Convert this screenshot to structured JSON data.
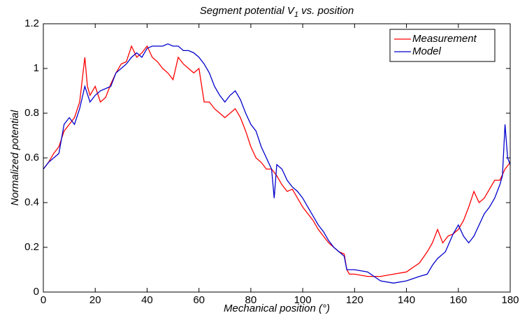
{
  "chart_data": {
    "type": "line",
    "title": {
      "text": "Segment potential V",
      "subscript": "1",
      "suffix": " vs. position"
    },
    "x_label": "Mechanical position (°)",
    "y_label": "Normalized potential",
    "xlim": [
      0,
      180
    ],
    "xticks": [
      0,
      20,
      40,
      60,
      80,
      100,
      120,
      140,
      160,
      180
    ],
    "ylim": [
      0,
      1.2
    ],
    "yticks": [
      0,
      0.2,
      0.4,
      0.6,
      0.8,
      1,
      1.2
    ],
    "grid": false,
    "legend": "top-right",
    "series": [
      {
        "name": "Measurement",
        "color": "#ff0000",
        "x": [
          0,
          2,
          4,
          6,
          8,
          10,
          12,
          14,
          16,
          17,
          18,
          20,
          22,
          24,
          26,
          28,
          30,
          32,
          34,
          36,
          38,
          40,
          42,
          44,
          46,
          48,
          50,
          52,
          54,
          56,
          58,
          60,
          62,
          64,
          66,
          68,
          70,
          72,
          74,
          76,
          78,
          80,
          82,
          84,
          86,
          88,
          90,
          92,
          94,
          96,
          98,
          100,
          102,
          104,
          106,
          108,
          110,
          112,
          114,
          116,
          117,
          118,
          120,
          125,
          130,
          135,
          140,
          145,
          148,
          150,
          152,
          154,
          156,
          158,
          160,
          162,
          164,
          166,
          168,
          170,
          172,
          174,
          176,
          178,
          180
        ],
        "values": [
          0.55,
          0.58,
          0.62,
          0.65,
          0.72,
          0.75,
          0.78,
          0.85,
          1.05,
          0.92,
          0.88,
          0.92,
          0.85,
          0.87,
          0.93,
          0.98,
          1.02,
          1.03,
          1.1,
          1.05,
          1.07,
          1.1,
          1.05,
          1.03,
          1.0,
          0.98,
          0.95,
          1.05,
          1.02,
          1.0,
          0.98,
          1.0,
          0.85,
          0.85,
          0.82,
          0.8,
          0.78,
          0.8,
          0.82,
          0.78,
          0.72,
          0.65,
          0.6,
          0.58,
          0.55,
          0.55,
          0.52,
          0.48,
          0.45,
          0.46,
          0.42,
          0.38,
          0.35,
          0.32,
          0.28,
          0.25,
          0.22,
          0.2,
          0.18,
          0.17,
          0.1,
          0.08,
          0.08,
          0.07,
          0.07,
          0.08,
          0.09,
          0.13,
          0.18,
          0.22,
          0.28,
          0.22,
          0.25,
          0.26,
          0.28,
          0.32,
          0.38,
          0.45,
          0.4,
          0.42,
          0.46,
          0.5,
          0.5,
          0.55,
          0.58
        ]
      },
      {
        "name": "Model",
        "color": "#0000cc",
        "x": [
          0,
          2,
          4,
          6,
          8,
          10,
          12,
          14,
          16,
          18,
          20,
          22,
          26,
          28,
          30,
          32,
          34,
          36,
          38,
          40,
          42,
          44,
          46,
          48,
          50,
          52,
          54,
          56,
          58,
          60,
          62,
          64,
          66,
          68,
          70,
          72,
          74,
          76,
          78,
          80,
          82,
          84,
          86,
          88,
          89,
          90,
          92,
          94,
          96,
          98,
          100,
          102,
          104,
          106,
          108,
          110,
          112,
          114,
          116,
          117,
          120,
          125,
          130,
          135,
          140,
          145,
          148,
          150,
          152,
          155,
          158,
          160,
          162,
          164,
          166,
          168,
          170,
          172,
          174,
          176,
          177,
          178,
          179,
          180
        ],
        "values": [
          0.55,
          0.58,
          0.6,
          0.62,
          0.75,
          0.78,
          0.75,
          0.82,
          0.92,
          0.85,
          0.88,
          0.9,
          0.92,
          0.98,
          1.0,
          1.02,
          1.05,
          1.07,
          1.05,
          1.09,
          1.1,
          1.1,
          1.1,
          1.11,
          1.1,
          1.1,
          1.08,
          1.08,
          1.07,
          1.05,
          1.02,
          0.98,
          0.92,
          0.88,
          0.85,
          0.88,
          0.9,
          0.86,
          0.8,
          0.75,
          0.72,
          0.65,
          0.6,
          0.55,
          0.42,
          0.57,
          0.55,
          0.5,
          0.47,
          0.45,
          0.42,
          0.38,
          0.34,
          0.3,
          0.27,
          0.23,
          0.2,
          0.18,
          0.16,
          0.1,
          0.1,
          0.09,
          0.05,
          0.04,
          0.05,
          0.07,
          0.08,
          0.12,
          0.15,
          0.18,
          0.26,
          0.3,
          0.25,
          0.22,
          0.25,
          0.3,
          0.35,
          0.38,
          0.42,
          0.48,
          0.52,
          0.75,
          0.6,
          0.57
        ]
      }
    ]
  }
}
